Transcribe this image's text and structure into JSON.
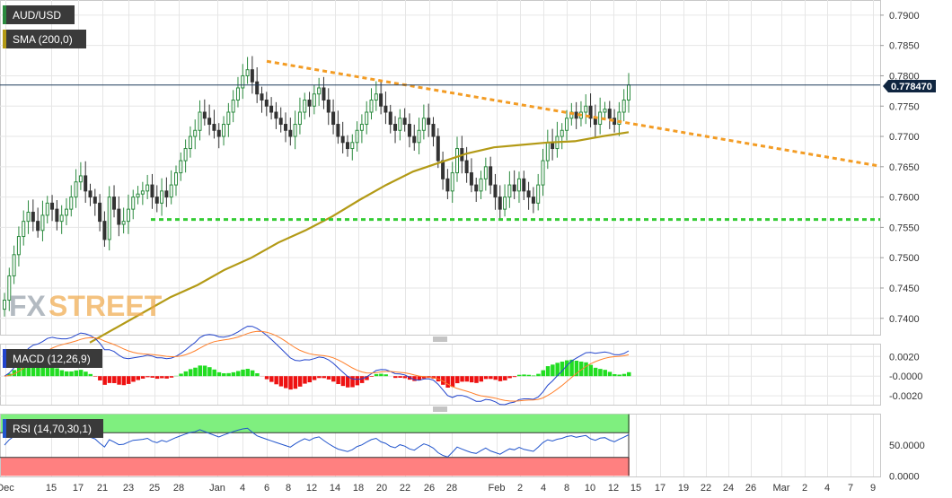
{
  "chart_data": {
    "type": "line",
    "main": {
      "symbol": "AUD/USD",
      "indicator_label": "SMA (200,0)",
      "last_price_label": "0.778470",
      "y_ticks": [
        "0.7900",
        "0.7850",
        "0.7800",
        "0.7750",
        "0.7700",
        "0.7650",
        "0.7600",
        "0.7550",
        "0.7500",
        "0.7450",
        "0.7400"
      ],
      "ylim": [
        0.7373,
        0.7925
      ],
      "candles_close": [
        0.743,
        0.747,
        0.7505,
        0.7535,
        0.756,
        0.7575,
        0.756,
        0.7545,
        0.757,
        0.759,
        0.758,
        0.756,
        0.757,
        0.758,
        0.76,
        0.7625,
        0.7635,
        0.761,
        0.76,
        0.759,
        0.756,
        0.753,
        0.76,
        0.758,
        0.7555,
        0.756,
        0.758,
        0.76,
        0.7605,
        0.761,
        0.762,
        0.76,
        0.759,
        0.761,
        0.76,
        0.762,
        0.764,
        0.766,
        0.768,
        0.77,
        0.771,
        0.774,
        0.773,
        0.772,
        0.771,
        0.77,
        0.772,
        0.774,
        0.776,
        0.778,
        0.78,
        0.781,
        0.779,
        0.777,
        0.776,
        0.775,
        0.774,
        0.773,
        0.772,
        0.771,
        0.77,
        0.772,
        0.774,
        0.776,
        0.775,
        0.777,
        0.778,
        0.776,
        0.774,
        0.772,
        0.77,
        0.769,
        0.768,
        0.769,
        0.771,
        0.772,
        0.774,
        0.776,
        0.777,
        0.775,
        0.774,
        0.772,
        0.771,
        0.773,
        0.772,
        0.77,
        0.769,
        0.771,
        0.773,
        0.772,
        0.77,
        0.766,
        0.763,
        0.761,
        0.764,
        0.768,
        0.766,
        0.764,
        0.762,
        0.761,
        0.763,
        0.765,
        0.762,
        0.76,
        0.758,
        0.76,
        0.762,
        0.761,
        0.763,
        0.761,
        0.76,
        0.759,
        0.762,
        0.766,
        0.769,
        0.768,
        0.77,
        0.771,
        0.773,
        0.774,
        0.773,
        0.774,
        0.775,
        0.773,
        0.772,
        0.774,
        0.7745,
        0.773,
        0.772,
        0.774,
        0.776,
        0.7785
      ],
      "sma_values": [
        0.736,
        0.7385,
        0.741,
        0.7435,
        0.7455,
        0.748,
        0.75,
        0.7525,
        0.7545,
        0.7568,
        0.7595,
        0.762,
        0.7642,
        0.7657,
        0.7672,
        0.7682,
        0.7686,
        0.769,
        0.7692,
        0.77,
        0.7707
      ],
      "resistance_line": [
        0.7824,
        0.7651
      ],
      "support_line": 0.7563
    },
    "macd": {
      "label": "MACD (12,26,9)",
      "y_ticks": [
        "0.0020",
        "-0.0000",
        "-0.0020"
      ],
      "ylim": [
        -0.0029,
        0.0033
      ]
    },
    "rsi": {
      "label": "RSI (14,70,30,1)",
      "y_ticks": [
        "50.0000",
        "0.0000"
      ],
      "ylim": [
        -1,
        101
      ],
      "overbought": 70,
      "oversold": 30
    },
    "x_ticks": [
      "Dec",
      "15",
      "17",
      "21",
      "23",
      "25",
      "28",
      "Jan",
      "4",
      "6",
      "8",
      "12",
      "14",
      "18",
      "20",
      "22",
      "26",
      "28",
      "Feb",
      "2",
      "4",
      "8",
      "10",
      "12",
      "15",
      "17",
      "19",
      "22",
      "24",
      "26",
      "Mar",
      "2",
      "4",
      "7",
      "9"
    ],
    "logo": {
      "part1": "FX",
      "part2": "STREET"
    },
    "colors": {
      "bull": "#2b8a3e",
      "bear": "#333333",
      "sma": "#b39a16",
      "trendline": "#f39c24",
      "support": "#33cc33",
      "price_line": "#1f3b5c",
      "price_label_bg": "#0f2540",
      "macd_line": "#2244cc",
      "signal_line": "#ff7f2a",
      "hist_pos": "#22dd22",
      "hist_neg": "#ee1111",
      "rsi_line": "#2255cc",
      "rsi_overbought_zone": "#7fef7f",
      "rsi_oversold_zone": "#ff8080"
    }
  }
}
